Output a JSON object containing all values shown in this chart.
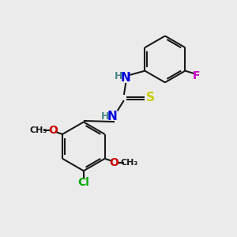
{
  "background_color": "#ebebeb",
  "bond_color": "#1a1a1a",
  "bond_width": 1.5,
  "atom_colors": {
    "N": "#0000dd",
    "O": "#cc0000",
    "S": "#cccc00",
    "F": "#cc00cc",
    "Cl": "#00aa00",
    "C": "#1a1a1a",
    "H": "#4a8888"
  },
  "figsize": [
    3.0,
    3.0
  ],
  "dpi": 100
}
